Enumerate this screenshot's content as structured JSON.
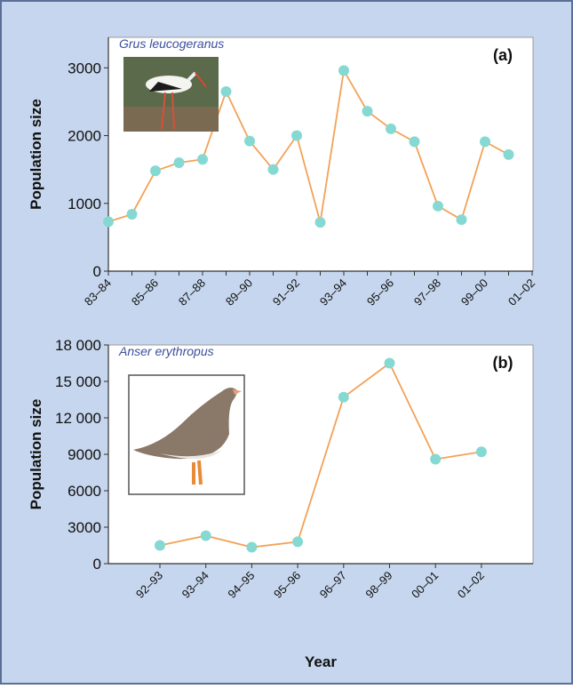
{
  "chart_data": [
    {
      "type": "line",
      "annotations": [
        "Grus leucogeranus",
        "(a)"
      ],
      "y_label": "Population size",
      "categories": [
        "83–84",
        null,
        "85–86",
        null,
        "87–88",
        null,
        "89–90",
        null,
        "91–92",
        null,
        "93–94",
        null,
        "95–96",
        null,
        "97–98",
        null,
        "99–00",
        null,
        "01–02"
      ],
      "series": [
        {
          "color": "#f2a257",
          "marker_color": "#86d9d2",
          "values": [
            730,
            840,
            1480,
            1600,
            1650,
            2650,
            1920,
            1500,
            2000,
            720,
            2960,
            2360,
            2100,
            1910,
            960,
            760,
            1910,
            1720,
            null
          ]
        }
      ],
      "ylim": [
        0,
        3450
      ],
      "yticks": [
        0,
        1000,
        2000,
        3000
      ]
    },
    {
      "type": "line",
      "annotations": [
        "Anser erythropus",
        "(b)"
      ],
      "y_label": "Population size",
      "x_label": "Year",
      "categories": [
        "92–93",
        "93–94",
        "94–95",
        "95–96",
        "96–97",
        "98–99",
        "00–01",
        "01–02"
      ],
      "series": [
        {
          "color": "#f2a257",
          "marker_color": "#86d9d2",
          "values": [
            1500,
            2300,
            1350,
            1800,
            13700,
            16500,
            8600,
            9200
          ]
        }
      ],
      "ylim": [
        0,
        18000
      ],
      "yticks": [
        0,
        3000,
        6000,
        9000,
        {
          "value": 12000,
          "label": "12 000"
        },
        {
          "value": 15000,
          "label": "15 000"
        },
        {
          "value": 18000,
          "label": "18 000"
        }
      ]
    }
  ]
}
